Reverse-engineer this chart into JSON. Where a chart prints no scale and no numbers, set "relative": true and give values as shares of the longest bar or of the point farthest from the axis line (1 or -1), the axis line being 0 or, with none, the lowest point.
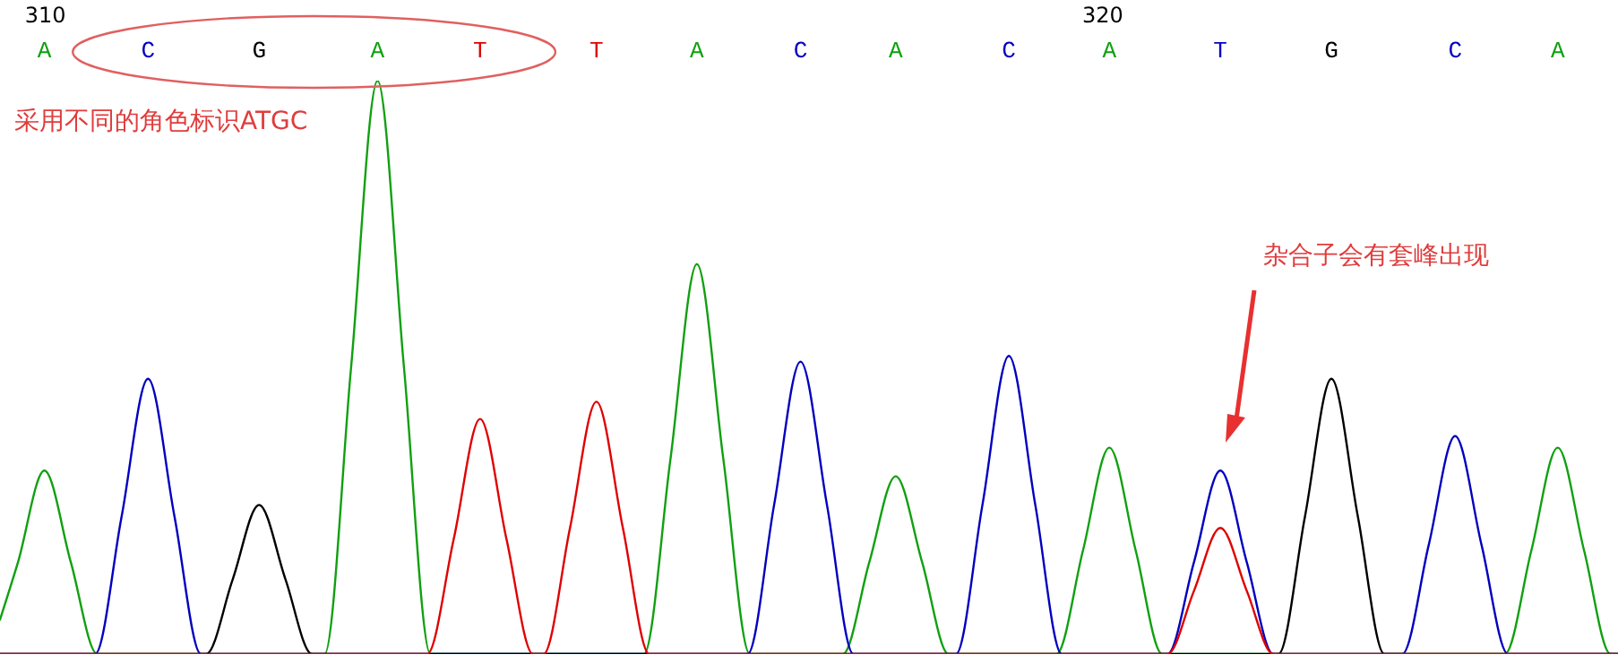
{
  "chart_data": {
    "type": "line",
    "relative": true,
    "marker": "none",
    "line_style": "solid",
    "grid": false,
    "xlim": [
      309.58,
      324.88
    ],
    "xticks": [
      310,
      320
    ],
    "annotations": [
      "采用不同的角色标识ATGC",
      "杂合子会有套峰出现",
      "A",
      "C",
      "G",
      "A",
      "T",
      "T",
      "A",
      "C",
      "A",
      "C",
      "A",
      "T",
      "G",
      "C",
      "A"
    ],
    "series": [
      {
        "color": "#10a010",
        "x": [
          309.58,
          309.75,
          310.0,
          310.25,
          310.5,
          312.65,
          312.9,
          313.15,
          313.4,
          313.65,
          315.67,
          315.92,
          316.17,
          316.42,
          316.67,
          317.55,
          317.8,
          318.05,
          318.3,
          318.55,
          319.57,
          319.82,
          320.07,
          320.32,
          320.57,
          323.81,
          324.06,
          324.31,
          324.56,
          324.81,
          324.88
        ],
        "values": [
          0.06,
          0.16,
          0.32,
          0.16,
          0,
          0,
          0.5,
          1,
          0.5,
          0,
          0,
          0.34,
          0.68,
          0.34,
          0,
          0,
          0.16,
          0.31,
          0.16,
          0,
          0,
          0.18,
          0.36,
          0.18,
          0,
          0,
          0.18,
          0.36,
          0.18,
          0,
          0
        ]
      },
      {
        "color": "#0000c0",
        "x": [
          309.58,
          310.48,
          310.73,
          310.98,
          311.23,
          311.48,
          316.65,
          316.9,
          317.15,
          317.4,
          317.65,
          318.62,
          318.87,
          319.12,
          319.37,
          319.62,
          320.62,
          320.87,
          321.12,
          321.37,
          321.62,
          322.84,
          323.09,
          323.34,
          323.59,
          323.84,
          324.88
        ],
        "values": [
          0,
          0,
          0.24,
          0.48,
          0.24,
          0,
          0,
          0.26,
          0.51,
          0.26,
          0,
          0,
          0.26,
          0.52,
          0.26,
          0,
          0,
          0.16,
          0.32,
          0.16,
          0,
          0,
          0.19,
          0.38,
          0.19,
          0,
          0
        ]
      },
      {
        "color": "#000000",
        "x": [
          309.58,
          311.53,
          311.78,
          312.03,
          312.28,
          312.53,
          321.67,
          321.92,
          322.17,
          322.42,
          322.67,
          324.88
        ],
        "values": [
          0,
          0,
          0.13,
          0.26,
          0.13,
          0,
          0,
          0.24,
          0.48,
          0.24,
          0,
          0
        ]
      },
      {
        "color": "#e00000",
        "x": [
          309.58,
          313.62,
          313.87,
          314.12,
          314.37,
          314.62,
          314.72,
          314.97,
          315.22,
          315.47,
          315.72,
          320.62,
          320.87,
          321.12,
          321.37,
          321.62,
          324.88
        ],
        "values": [
          0,
          0,
          0.2,
          0.41,
          0.2,
          0,
          0,
          0.22,
          0.44,
          0.22,
          0,
          0,
          0.11,
          0.22,
          0.11,
          0,
          0
        ]
      }
    ]
  }
}
